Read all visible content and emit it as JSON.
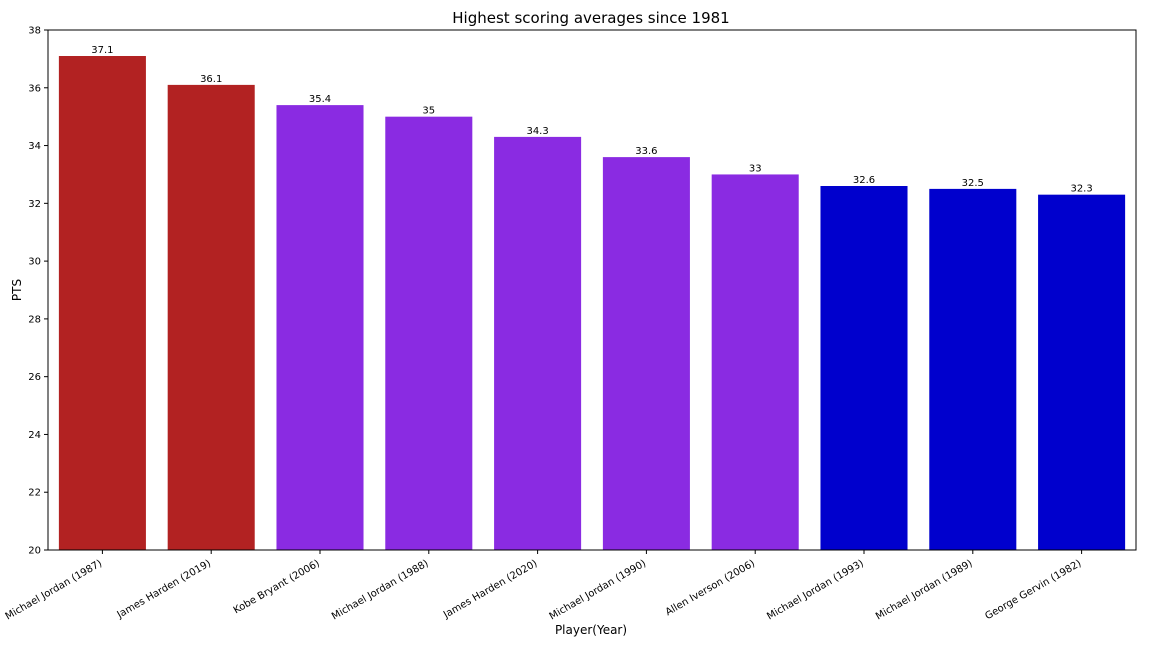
{
  "chart_data": {
    "type": "bar",
    "title": "Highest scoring averages since 1981",
    "xlabel": "Player(Year)",
    "ylabel": "PTS",
    "ylim": [
      20,
      38
    ],
    "yticks": [
      "20",
      "22",
      "24",
      "26",
      "28",
      "30",
      "32",
      "34",
      "36",
      "38"
    ],
    "grid": false,
    "categories": [
      "Michael Jordan (1987)",
      "James Harden (2019)",
      "Kobe Bryant (2006)",
      "Michael Jordan (1988)",
      "James Harden (2020)",
      "Michael Jordan (1990)",
      "Allen Iverson (2006)",
      "Michael Jordan (1993)",
      "Michael Jordan (1989)",
      "George Gervin (1982)"
    ],
    "values": [
      37.1,
      36.1,
      35.4,
      35,
      34.3,
      33.6,
      33,
      32.6,
      32.5,
      32.3
    ],
    "value_labels": [
      "37.1",
      "36.1",
      "35.4",
      "35",
      "34.3",
      "33.6",
      "33",
      "32.6",
      "32.5",
      "32.3"
    ],
    "bar_colors": [
      "#b22222",
      "#b22222",
      "#8a2be2",
      "#8a2be2",
      "#8a2be2",
      "#8a2be2",
      "#8a2be2",
      "#0000cd",
      "#0000cd",
      "#0000cd"
    ]
  }
}
